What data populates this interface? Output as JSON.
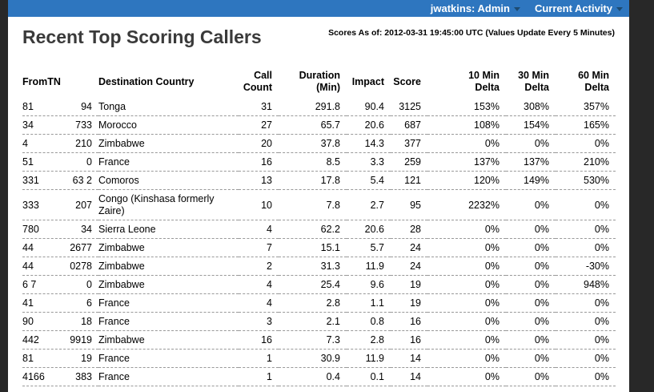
{
  "topbar": {
    "user_label": "jwatkins: Admin",
    "activity_label": "Current Activity",
    "background_color": "#2e76bf"
  },
  "page": {
    "title": "Recent Top Scoring Callers",
    "scores_as_of": "Scores As of: 2012-03-31 19:45:00 UTC (Values Update Every 5 Minutes)"
  },
  "table": {
    "columns": [
      "FromTN",
      "Destination Country",
      "Call\nCount",
      "Duration\n(Min)",
      "Impact",
      "Score",
      "10 Min\nDelta",
      "30 Min\nDelta",
      "60 Min\nDelta"
    ],
    "rows": [
      {
        "fromtn_left": "81",
        "fromtn_right": "94",
        "country": "Tonga",
        "cells": [
          "31",
          "291.8",
          "90.4",
          "3125",
          "153%",
          "308%",
          "357%"
        ]
      },
      {
        "fromtn_left": "34",
        "fromtn_right": "733",
        "country": "Morocco",
        "cells": [
          "27",
          "65.7",
          "20.6",
          "687",
          "108%",
          "154%",
          "165%"
        ]
      },
      {
        "fromtn_left": "4",
        "fromtn_right": "210",
        "country": "Zimbabwe",
        "cells": [
          "20",
          "37.8",
          "14.3",
          "377",
          "0%",
          "0%",
          "0%"
        ]
      },
      {
        "fromtn_left": "51",
        "fromtn_right": "0",
        "country": "France",
        "cells": [
          "16",
          "8.5",
          "3.3",
          "259",
          "137%",
          "137%",
          "210%"
        ]
      },
      {
        "fromtn_left": "331",
        "fromtn_right": "63 2",
        "country": "Comoros",
        "cells": [
          "13",
          "17.8",
          "5.4",
          "121",
          "120%",
          "149%",
          "530%"
        ]
      },
      {
        "fromtn_left": "333",
        "fromtn_right": "207",
        "country": "Congo (Kinshasa formerly Zaire)",
        "cells": [
          "10",
          "7.8",
          "2.7",
          "95",
          "2232%",
          "0%",
          "0%"
        ]
      },
      {
        "fromtn_left": "780",
        "fromtn_right": "34",
        "country": "Sierra Leone",
        "cells": [
          "4",
          "62.2",
          "20.6",
          "28",
          "0%",
          "0%",
          "0%"
        ]
      },
      {
        "fromtn_left": "44",
        "fromtn_right": "2677",
        "country": "Zimbabwe",
        "cells": [
          "7",
          "15.1",
          "5.7",
          "24",
          "0%",
          "0%",
          "0%"
        ]
      },
      {
        "fromtn_left": "44",
        "fromtn_right": "0278",
        "country": "Zimbabwe",
        "cells": [
          "2",
          "31.3",
          "11.9",
          "24",
          "0%",
          "0%",
          "-30%"
        ]
      },
      {
        "fromtn_left": "6 7",
        "fromtn_right": "0",
        "country": "Zimbabwe",
        "cells": [
          "4",
          "25.4",
          "9.6",
          "19",
          "0%",
          "0%",
          "948%"
        ]
      },
      {
        "fromtn_left": "41",
        "fromtn_right": "6",
        "country": "France",
        "cells": [
          "4",
          "2.8",
          "1.1",
          "19",
          "0%",
          "0%",
          "0%"
        ]
      },
      {
        "fromtn_left": "90",
        "fromtn_right": "18",
        "country": "France",
        "cells": [
          "3",
          "2.1",
          "0.8",
          "16",
          "0%",
          "0%",
          "0%"
        ]
      },
      {
        "fromtn_left": "442",
        "fromtn_right": "9919",
        "country": "Zimbabwe",
        "cells": [
          "16",
          "7.3",
          "2.8",
          "16",
          "0%",
          "0%",
          "0%"
        ]
      },
      {
        "fromtn_left": "81",
        "fromtn_right": "19",
        "country": "France",
        "cells": [
          "1",
          "30.9",
          "11.9",
          "14",
          "0%",
          "0%",
          "0%"
        ]
      },
      {
        "fromtn_left": "4166",
        "fromtn_right": "383",
        "country": "France",
        "cells": [
          "1",
          "0.4",
          "0.1",
          "14",
          "0%",
          "0%",
          "0%"
        ]
      }
    ]
  }
}
